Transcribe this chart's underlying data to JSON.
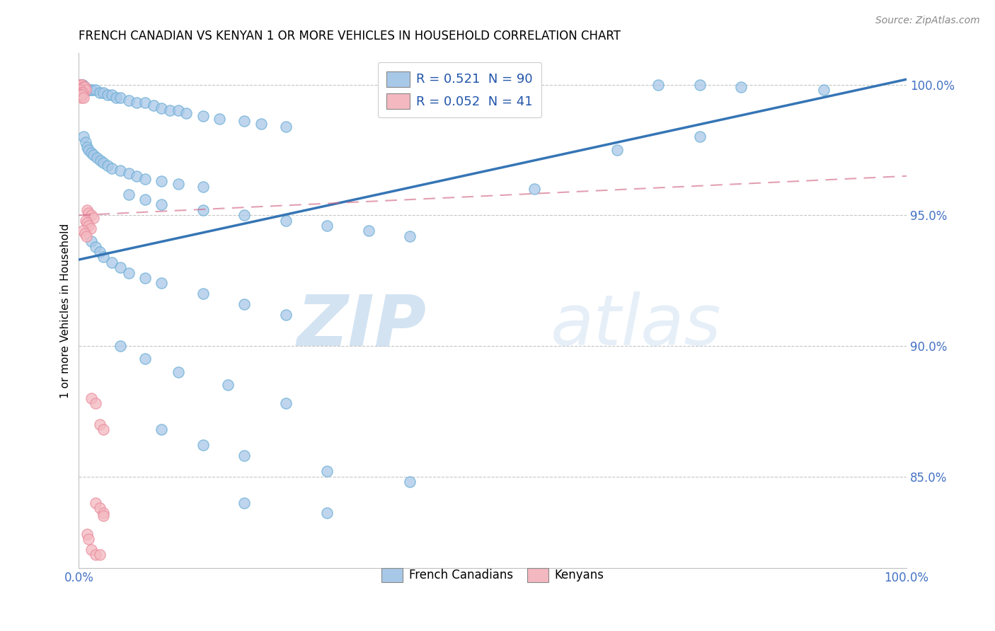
{
  "title": "FRENCH CANADIAN VS KENYAN 1 OR MORE VEHICLES IN HOUSEHOLD CORRELATION CHART",
  "source": "Source: ZipAtlas.com",
  "ylabel": "1 or more Vehicles in Household",
  "yticks": [
    "100.0%",
    "95.0%",
    "90.0%",
    "85.0%"
  ],
  "ytick_vals": [
    1.0,
    0.95,
    0.9,
    0.85
  ],
  "watermark_zip": "ZIP",
  "watermark_atlas": "atlas",
  "R_blue": 0.521,
  "N_blue": 90,
  "R_pink": 0.052,
  "N_pink": 41,
  "blue_color": "#a8c8e8",
  "blue_edge_color": "#6baed6",
  "pink_color": "#f4b8c0",
  "pink_edge_color": "#e88fa0",
  "blue_line_color": "#3575b5",
  "pink_line_color": "#d06080",
  "xlim": [
    0.0,
    1.0
  ],
  "ylim": [
    0.815,
    1.012
  ],
  "blue_trend_x": [
    0.0,
    1.0
  ],
  "blue_trend_y": [
    0.933,
    1.002
  ],
  "pink_trend_x": [
    0.0,
    1.0
  ],
  "pink_trend_y": [
    0.95,
    0.965
  ],
  "blue_scatter": [
    [
      0.002,
      1.0
    ],
    [
      0.003,
      1.0
    ],
    [
      0.004,
      1.0
    ],
    [
      0.005,
      1.0
    ],
    [
      0.001,
      0.999
    ],
    [
      0.003,
      0.999
    ],
    [
      0.006,
      0.999
    ],
    [
      0.007,
      0.999
    ],
    [
      0.008,
      0.998
    ],
    [
      0.01,
      0.998
    ],
    [
      0.012,
      0.998
    ],
    [
      0.014,
      0.998
    ],
    [
      0.016,
      0.998
    ],
    [
      0.02,
      0.998
    ],
    [
      0.025,
      0.997
    ],
    [
      0.03,
      0.997
    ],
    [
      0.035,
      0.996
    ],
    [
      0.04,
      0.996
    ],
    [
      0.045,
      0.995
    ],
    [
      0.05,
      0.995
    ],
    [
      0.06,
      0.994
    ],
    [
      0.07,
      0.993
    ],
    [
      0.08,
      0.993
    ],
    [
      0.09,
      0.992
    ],
    [
      0.1,
      0.991
    ],
    [
      0.11,
      0.99
    ],
    [
      0.12,
      0.99
    ],
    [
      0.13,
      0.989
    ],
    [
      0.15,
      0.988
    ],
    [
      0.17,
      0.987
    ],
    [
      0.2,
      0.986
    ],
    [
      0.22,
      0.985
    ],
    [
      0.25,
      0.984
    ],
    [
      0.006,
      0.98
    ],
    [
      0.008,
      0.978
    ],
    [
      0.01,
      0.976
    ],
    [
      0.012,
      0.975
    ],
    [
      0.015,
      0.974
    ],
    [
      0.018,
      0.973
    ],
    [
      0.022,
      0.972
    ],
    [
      0.026,
      0.971
    ],
    [
      0.03,
      0.97
    ],
    [
      0.035,
      0.969
    ],
    [
      0.04,
      0.968
    ],
    [
      0.05,
      0.967
    ],
    [
      0.06,
      0.966
    ],
    [
      0.07,
      0.965
    ],
    [
      0.08,
      0.964
    ],
    [
      0.1,
      0.963
    ],
    [
      0.12,
      0.962
    ],
    [
      0.15,
      0.961
    ],
    [
      0.06,
      0.958
    ],
    [
      0.08,
      0.956
    ],
    [
      0.1,
      0.954
    ],
    [
      0.15,
      0.952
    ],
    [
      0.2,
      0.95
    ],
    [
      0.25,
      0.948
    ],
    [
      0.3,
      0.946
    ],
    [
      0.35,
      0.944
    ],
    [
      0.4,
      0.942
    ],
    [
      0.015,
      0.94
    ],
    [
      0.02,
      0.938
    ],
    [
      0.025,
      0.936
    ],
    [
      0.03,
      0.934
    ],
    [
      0.04,
      0.932
    ],
    [
      0.05,
      0.93
    ],
    [
      0.06,
      0.928
    ],
    [
      0.08,
      0.926
    ],
    [
      0.1,
      0.924
    ],
    [
      0.15,
      0.92
    ],
    [
      0.2,
      0.916
    ],
    [
      0.25,
      0.912
    ],
    [
      0.05,
      0.9
    ],
    [
      0.08,
      0.895
    ],
    [
      0.12,
      0.89
    ],
    [
      0.18,
      0.885
    ],
    [
      0.25,
      0.878
    ],
    [
      0.1,
      0.868
    ],
    [
      0.15,
      0.862
    ],
    [
      0.2,
      0.858
    ],
    [
      0.3,
      0.852
    ],
    [
      0.4,
      0.848
    ],
    [
      0.2,
      0.84
    ],
    [
      0.3,
      0.836
    ],
    [
      0.7,
      1.0
    ],
    [
      0.75,
      1.0
    ],
    [
      0.8,
      0.999
    ],
    [
      0.9,
      0.998
    ],
    [
      0.55,
      0.96
    ],
    [
      0.65,
      0.975
    ],
    [
      0.75,
      0.98
    ]
  ],
  "pink_scatter": [
    [
      0.001,
      1.0
    ],
    [
      0.002,
      1.0
    ],
    [
      0.003,
      1.0
    ],
    [
      0.004,
      1.0
    ],
    [
      0.005,
      0.999
    ],
    [
      0.006,
      0.999
    ],
    [
      0.007,
      0.999
    ],
    [
      0.008,
      0.998
    ],
    [
      0.001,
      0.998
    ],
    [
      0.002,
      0.997
    ],
    [
      0.003,
      0.997
    ],
    [
      0.005,
      0.997
    ],
    [
      0.001,
      0.996
    ],
    [
      0.002,
      0.996
    ],
    [
      0.003,
      0.995
    ],
    [
      0.004,
      0.996
    ],
    [
      0.006,
      0.995
    ],
    [
      0.01,
      0.952
    ],
    [
      0.012,
      0.951
    ],
    [
      0.015,
      0.95
    ],
    [
      0.018,
      0.949
    ],
    [
      0.008,
      0.948
    ],
    [
      0.01,
      0.947
    ],
    [
      0.012,
      0.946
    ],
    [
      0.014,
      0.945
    ],
    [
      0.005,
      0.944
    ],
    [
      0.007,
      0.943
    ],
    [
      0.009,
      0.942
    ],
    [
      0.015,
      0.88
    ],
    [
      0.02,
      0.878
    ],
    [
      0.025,
      0.87
    ],
    [
      0.03,
      0.868
    ],
    [
      0.02,
      0.84
    ],
    [
      0.025,
      0.838
    ],
    [
      0.03,
      0.836
    ],
    [
      0.01,
      0.828
    ],
    [
      0.012,
      0.826
    ],
    [
      0.015,
      0.822
    ],
    [
      0.02,
      0.82
    ],
    [
      0.025,
      0.82
    ],
    [
      0.03,
      0.835
    ]
  ]
}
